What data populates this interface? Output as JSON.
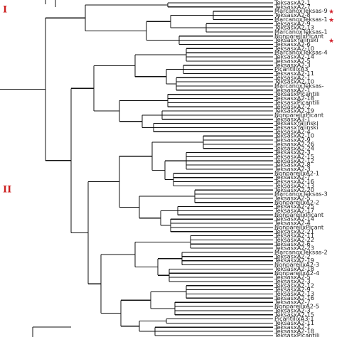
{
  "figure": {
    "cluster_labels": [
      "I",
      "II"
    ],
    "leaves": [
      "TeksasxA2-1",
      "TeksasxA2-7",
      "MarcanoxTeksas-9",
      "TeksasxA2-8",
      "MarcanoxTeksas-1",
      "TeksasxA2-9",
      "TeksasxA2-13",
      "MarcanoxTeksas-1",
      "NonpareilxPicant",
      "TeksasxYalinski",
      "TeksasxA2-6",
      "TeksasxA2-10",
      "MarcanoxTeksas-4",
      "TeksasxA2-14",
      "TeksasxA2-5",
      "TeksasxA2-3",
      "PicantilixA3",
      "TeksasxA2-11",
      "TeksasxA2-1",
      "TeksasxA2-10",
      "MarcanoxTeksas-",
      "TeksasxA2-1",
      "TeksasxPicantili",
      "TeksasxA2-18",
      "TeksasxPicantili",
      "TeksasxA2-2",
      "TeksasxA2-19",
      "NonpareilxPicant",
      "TeksasxA3-1",
      "TeksasxYalinski",
      "TeksasxYalinski",
      "TeksasxA2-4",
      "TeksasxA2-10",
      "TeksasxA2-9",
      "TeksasxA2-26",
      "TeksasxA2-24",
      "TeksasxA2-3",
      "TeksasxA2-15",
      "TeksasxA2-12",
      "TeksasxA2-8",
      "TeksasxA2-3",
      "NonpareilxA2-1",
      "TeksasxA2-7",
      "TeksasxA2-16",
      "TeksasxA2-13",
      "TeksasxA2-20",
      "MarcanoxTeksas-3",
      "TeksasxA2-5",
      "NonpareilxA2-2",
      "TeksasxA2-25",
      "TeksasxA2-17",
      "NonpareilxPicant",
      "TeksasxA2-14",
      "TeksasxA2-4",
      "NonpareilxPicant",
      "TeksasxA2-21",
      "TeksasxA2-11",
      "TeksasxA2-22",
      "TeksasxA2-6",
      "TeksasxA2-23",
      "MarcanoxTeksas-2",
      "TeksasxA2-2",
      "TeksasxA2-19",
      "NonpareilxA2-3",
      "TeksasxA2-18",
      "NonpareilxA2-4",
      "TeksasxA2-5",
      "TeksasxA2-3",
      "TeksasxA2-12",
      "TeksasxA2-9",
      "TeksasxA2-13",
      "TeksasxA2-16",
      "TeksasxA2-7",
      "NonpareilxA2-5",
      "TeksasxA2-3",
      "TeksasxA2-15",
      "PicantilixA3-1",
      "TeksasxA2-11",
      "TeksasxA2-1",
      "TeksasxA2-18",
      "TeksasxPicantili"
    ],
    "starred_leaves": [
      2,
      4,
      9
    ]
  }
}
